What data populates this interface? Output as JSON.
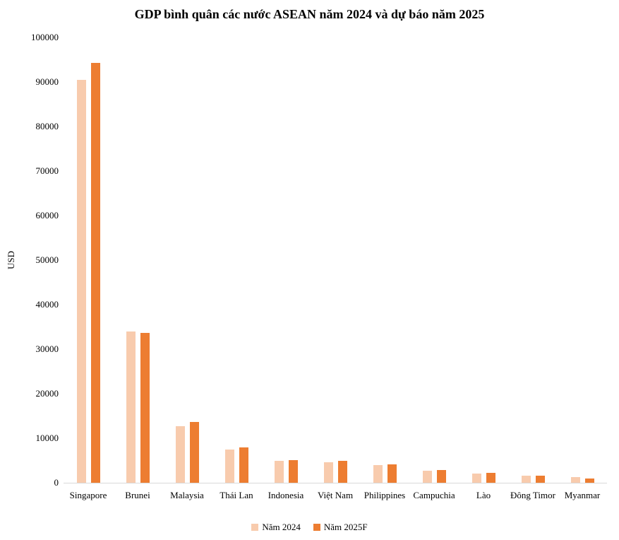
{
  "chart_data": {
    "type": "bar",
    "title": "GDP bình quân các nước ASEAN năm 2024 và dự báo năm 2025",
    "ylabel": "USD",
    "xlabel": "",
    "ylim": [
      0,
      100000
    ],
    "ytick_step": 10000,
    "grid": false,
    "legend_position": "bottom",
    "axis_color": "#D9D9D9",
    "categories": [
      "Singapore",
      "Brunei",
      "Malaysia",
      "Thái Lan",
      "Indonesia",
      "Việt Nam",
      "Philippines",
      "Campuchia",
      "Lào",
      "Đông Timor",
      "Myanmar"
    ],
    "series": [
      {
        "name": "Năm 2024",
        "color": "#F8CBAD",
        "values": [
          90500,
          33900,
          12700,
          7500,
          4950,
          4550,
          3950,
          2650,
          2100,
          1550,
          1200
        ]
      },
      {
        "name": "Năm 2025F",
        "color": "#ED7D31",
        "values": [
          94300,
          33700,
          13700,
          7950,
          5150,
          4850,
          4150,
          2900,
          2250,
          1650,
          1000
        ]
      }
    ]
  }
}
